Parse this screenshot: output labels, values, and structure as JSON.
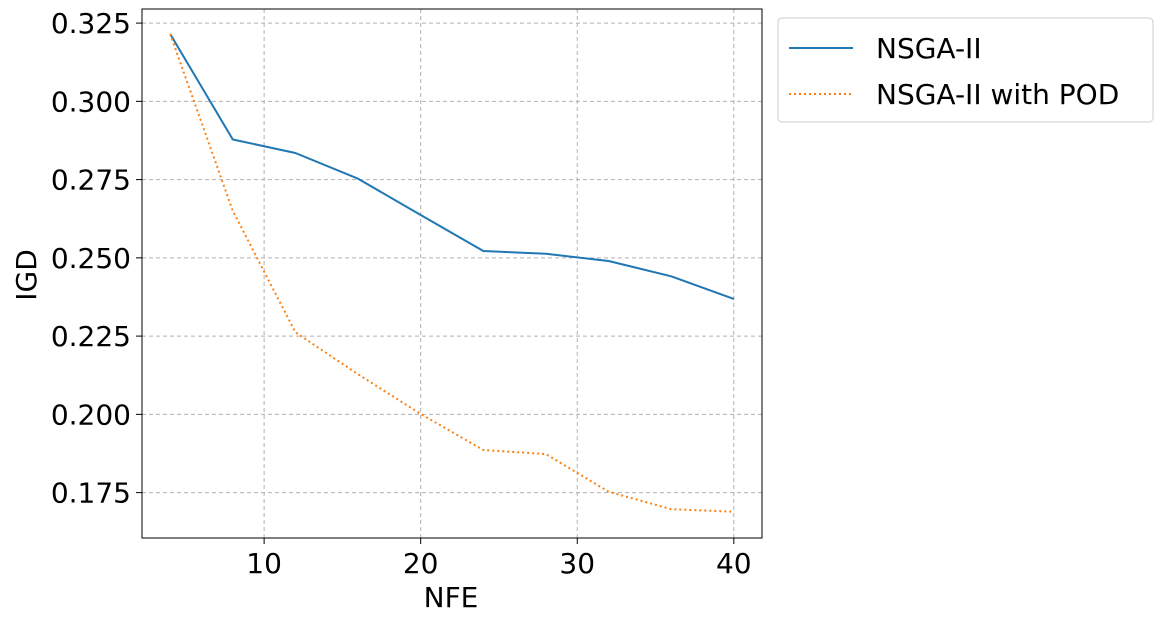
{
  "chart_data": {
    "type": "line",
    "xlabel": "NFE",
    "ylabel": "IGD",
    "xlim": [
      2.2,
      41.8
    ],
    "ylim": [
      0.1605,
      0.3295
    ],
    "xticks": [
      10,
      20,
      30,
      40
    ],
    "xtick_labels": [
      "10",
      "20",
      "30",
      "40"
    ],
    "yticks": [
      0.175,
      0.2,
      0.225,
      0.25,
      0.275,
      0.3,
      0.325
    ],
    "ytick_labels": [
      "0.175",
      "0.200",
      "0.225",
      "0.250",
      "0.275",
      "0.300",
      "0.325"
    ],
    "grid": true,
    "legend_position": "outside-top-right",
    "series": [
      {
        "name": "NSGA-II",
        "color": "#1f77b4",
        "style": "solid",
        "x": [
          4,
          8,
          12,
          16,
          20,
          24,
          28,
          32,
          36,
          40
        ],
        "y": [
          0.3215,
          0.2878,
          0.2835,
          0.2753,
          0.2637,
          0.2522,
          0.2513,
          0.249,
          0.2441,
          0.2369
        ]
      },
      {
        "name": "NSGA-II with POD",
        "color": "#ff7f0e",
        "style": "dotted",
        "x": [
          4,
          8,
          12,
          16,
          20,
          24,
          28,
          32,
          36,
          40
        ],
        "y": [
          0.3215,
          0.265,
          0.2262,
          0.2128,
          0.2001,
          0.1886,
          0.1873,
          0.1753,
          0.1697,
          0.1689
        ]
      }
    ]
  }
}
